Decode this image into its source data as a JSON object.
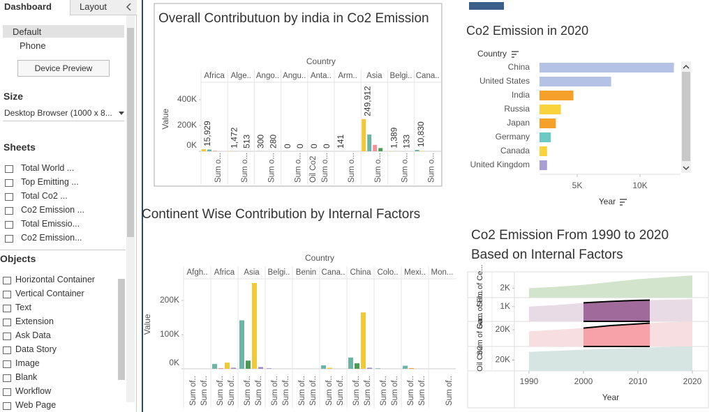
{
  "sidebar": {
    "tabs": [
      "Dashboard",
      "Layout"
    ],
    "devices": [
      "Default",
      "Phone"
    ],
    "device_preview": "Device Preview",
    "size_heading": "Size",
    "size_value": "Desktop Browser (1000 x 8...",
    "sheets_heading": "Sheets",
    "sheets": [
      "Total World ...",
      "Top Emitting ...",
      "Total Co2 ...",
      "Co2 Emission ...",
      "Total Emissio...",
      "Co2 Emission..."
    ],
    "objects_heading": "Objects",
    "objects": [
      "Horizontal Container",
      "Vertical Container",
      "Text",
      "Extension",
      "Ask Data",
      "Data Story",
      "Image",
      "Blank",
      "Workflow",
      "Web Page"
    ]
  },
  "charts": [
    {
      "type": "column_panels",
      "title": "Overall Contributuon  by india in Co2 Emission",
      "column_header": "Country",
      "y_label": "Value",
      "ylim": [
        0,
        500000
      ],
      "yticks": [
        {
          "value": 0,
          "label": "0K"
        },
        {
          "value": 200000,
          "label": "200K"
        },
        {
          "value": 400000,
          "label": "400K"
        }
      ],
      "columns": [
        {
          "name": "Africa",
          "bars": [
            {
              "value": 15929,
              "color": "#f1c936"
            },
            {
              "value": 14000,
              "color": "#6cb5a5"
            },
            {
              "value": 4000,
              "color": "#f2929a"
            }
          ],
          "labels": [
            {
              "value": 15929,
              "label": "15,929"
            }
          ],
          "footers": [
            "Sum o..."
          ]
        },
        {
          "name": "Alge..",
          "bars": [
            {
              "value": 1472,
              "color": "#f1c936"
            },
            {
              "value": 513,
              "color": "#6cb5a5"
            }
          ],
          "labels": [
            {
              "value": 1472,
              "label": "1,472"
            },
            513
          ],
          "footers": [
            "Sum o..."
          ]
        },
        {
          "name": "Ango..",
          "bars": [
            {
              "value": 300,
              "color": "#f1c936"
            },
            {
              "value": 280,
              "color": "#6cb5a5"
            }
          ],
          "labels": [
            300,
            280
          ],
          "footers": [
            "Sum o..."
          ]
        },
        {
          "name": "Angu..",
          "bars": [
            {
              "value": 0,
              "color": "#f1c936"
            },
            {
              "value": 0,
              "color": "#6cb5a5"
            }
          ],
          "labels": [
            0,
            0
          ],
          "footers": [
            "Sum o..."
          ]
        },
        {
          "name": "Anta..",
          "bars": [
            {
              "value": 0,
              "color": "#f1c936"
            },
            {
              "value": 0,
              "color": "#6cb5a5"
            }
          ],
          "labels": [
            0,
            0
          ],
          "footers": [
            "Oil Co2",
            "Sum o..."
          ]
        },
        {
          "name": "Arm..",
          "bars": [
            {
              "value": 141,
              "color": "#f1c936"
            }
          ],
          "labels": [
            141
          ],
          "footers": [
            "Sum o..."
          ]
        },
        {
          "name": "Asia",
          "bars": [
            {
              "value": 249912,
              "color": "#f1c936"
            },
            {
              "value": 130000,
              "color": "#6cb5a5"
            },
            {
              "value": 50000,
              "color": "#f2929a"
            },
            {
              "value": 25000,
              "color": "#4d9a57"
            }
          ],
          "labels": [
            {
              "value": 249912,
              "label": "249,912"
            }
          ],
          "footers": [
            "Sum o..."
          ]
        },
        {
          "name": "Belgi..",
          "bars": [
            {
              "value": 1389,
              "color": "#f1c936"
            },
            {
              "value": 133,
              "color": "#6cb5a5"
            }
          ],
          "labels": [
            {
              "value": 1389,
              "label": "1,389"
            },
            133
          ],
          "footers": [
            "Sum o..."
          ]
        },
        {
          "name": "Cana..",
          "bars": [
            {
              "value": 10830,
              "color": "#6cb5a5"
            },
            {
              "value": 3000,
              "color": "#f1c936"
            }
          ],
          "labels": [
            {
              "value": 10830,
              "label": "10,830"
            }
          ],
          "footers": [
            "Sum o..."
          ]
        }
      ]
    },
    {
      "type": "hbar",
      "title": "Co2 Emission in 2020",
      "category_header": "Country",
      "x_label": "Year",
      "xlim": [
        2000,
        13000
      ],
      "xticks": [
        {
          "value": 5000,
          "label": "5K"
        },
        {
          "value": 10000,
          "label": "10K"
        }
      ],
      "categories": [
        "China",
        "United States",
        "India",
        "Russia",
        "Japan",
        "Germany",
        "Canada",
        "United Kingdom"
      ],
      "values": [
        12700,
        7700,
        4700,
        3700,
        3300,
        2900,
        2600,
        2600
      ],
      "colors": [
        "#b4c2e6",
        "#b4c2e6",
        "#f5a02a",
        "#f9d33b",
        "#f5a02a",
        "#6cc9c4",
        "#f9d33b",
        "#a99fd6"
      ]
    },
    {
      "type": "column_panels",
      "title": "Continent Wise Contribution by Internal Factors",
      "column_header": "Country",
      "y_label": "Value",
      "ylim": [
        0,
        260000
      ],
      "yticks": [
        {
          "value": 0,
          "label": "0K"
        },
        {
          "value": 100000,
          "label": "100K"
        },
        {
          "value": 200000,
          "label": "200K"
        }
      ],
      "columns": [
        {
          "name": "Afgh..",
          "bars": [],
          "footers": [
            "Sum of..",
            "Sum of.."
          ]
        },
        {
          "name": "Africa",
          "bars": [
            {
              "value": 14000,
              "color": "#6cb5a5"
            },
            {
              "value": 2000,
              "color": "#f2929a"
            },
            {
              "value": 18000,
              "color": "#f1c936"
            },
            {
              "value": 3000,
              "color": "#9c87bf"
            }
          ],
          "footers": [
            "Sum of..",
            "Sum of.."
          ]
        },
        {
          "name": "Asia",
          "bars": [
            {
              "value": 142000,
              "color": "#6cb5a5"
            },
            {
              "value": 24000,
              "color": "#4d9a57"
            },
            {
              "value": 251000,
              "color": "#f1c936"
            },
            {
              "value": 5000,
              "color": "#9c87bf"
            }
          ],
          "footers": [
            "Sum of..",
            "Sum of.."
          ]
        },
        {
          "name": "Belgi..",
          "bars": [
            {
              "value": 1500,
              "color": "#9c87bf"
            }
          ],
          "footers": [
            "Sum of..",
            "Sum of.."
          ]
        },
        {
          "name": "Benin",
          "bars": [],
          "footers": [
            "Sum of..",
            "Sum of.."
          ]
        },
        {
          "name": "Cana..",
          "bars": [
            {
              "value": 10000,
              "color": "#6cb5a5"
            },
            {
              "value": 3000,
              "color": "#f1c936"
            }
          ],
          "footers": [
            "Sum of..",
            "Sum of.."
          ]
        },
        {
          "name": "China",
          "bars": [
            {
              "value": 33000,
              "color": "#6cb5a5"
            },
            {
              "value": 16000,
              "color": "#4d9a57"
            },
            {
              "value": 165000,
              "color": "#f1c936"
            },
            {
              "value": 3000,
              "color": "#9c87bf"
            }
          ],
          "footers": [
            "Sum of..",
            "Sum of.."
          ]
        },
        {
          "name": "Colo..",
          "bars": [
            {
              "value": 1500,
              "color": "#6cb5a5"
            }
          ],
          "footers": [
            "Sum of..",
            "Sum of.."
          ]
        },
        {
          "name": "Mexi..",
          "bars": [
            {
              "value": 9000,
              "color": "#6cb5a5"
            },
            {
              "value": 2000,
              "color": "#f5a02a"
            }
          ],
          "footers": [
            "Sum of..",
            "Sum of.."
          ]
        },
        {
          "name": "Mon...",
          "bars": [],
          "footers": [
            "Sum of.."
          ]
        }
      ]
    },
    {
      "type": "area_rows",
      "title": "Co2 Emission From 1990 to 2020 Based on Internal Factors",
      "x_label": "Year",
      "xlim": [
        1990,
        2020
      ],
      "xticks": [
        1990,
        2000,
        2010,
        2020
      ],
      "x": [
        1990,
        1995,
        2000,
        2005,
        2010,
        2015,
        2020
      ],
      "rows": [
        {
          "label": "Sum of Ce...",
          "color": "#d3e4cd",
          "ylim": [
            0,
            5000
          ],
          "yticks": [
            {
              "value": 2000,
              "label": "2K"
            }
          ],
          "values": [
            2000,
            2300,
            2700,
            3300,
            3900,
            4300,
            4700
          ]
        },
        {
          "label": "Sum of Fl...",
          "color": "#e9dbe5",
          "highlight_color": "#a06a9a",
          "ylim": [
            0,
            1600
          ],
          "yticks": [
            {
              "value": 1000,
              "label": "1K"
            }
          ],
          "values": [
            1000,
            1100,
            1250,
            1350,
            1420,
            1460,
            1500
          ]
        },
        {
          "label": "Sum of Ga...",
          "color": "#f7dfe1",
          "highlight_color": "#f7a1a8",
          "ylim": [
            0,
            30000
          ],
          "yticks": [
            {
              "value": 20000,
              "label": "20K"
            }
          ],
          "values": [
            18000,
            20000,
            22000,
            25000,
            27000,
            29000,
            30000
          ]
        },
        {
          "label": "Oil Co2",
          "color": "#d6e5e1",
          "ylim": [
            0,
            45000
          ],
          "yticks": [
            {
              "value": 20000,
              "label": "20K"
            }
          ],
          "values": [
            35000,
            37000,
            39000,
            41000,
            42500,
            44000,
            44500
          ]
        }
      ]
    }
  ]
}
